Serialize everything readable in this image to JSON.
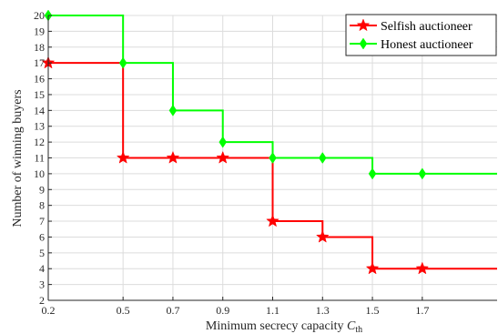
{
  "chart_data": {
    "type": "line",
    "step": "post",
    "title": "",
    "xlabel": "Minimum secrecy capacity",
    "xlabel_symbol": "C",
    "xlabel_subscript": "th",
    "ylabel": "Number of winning buyers",
    "xlim": [
      0.2,
      2.0
    ],
    "ylim": [
      2,
      20
    ],
    "x_ticks": [
      "0.2",
      "0.5",
      "0.7",
      "0.9",
      "1.1",
      "1.3",
      "1.5",
      "1.7"
    ],
    "y_ticks": [
      "2",
      "3",
      "4",
      "5",
      "6",
      "7",
      "8",
      "9",
      "10",
      "11",
      "12",
      "13",
      "14",
      "15",
      "16",
      "17",
      "18",
      "19",
      "20"
    ],
    "grid": true,
    "legend_position": "top-right",
    "series": [
      {
        "name": "Selfish auctioneer",
        "color": "#ff0000",
        "marker": "star",
        "x": [
          0.2,
          0.5,
          0.7,
          0.9,
          1.1,
          1.3,
          1.5,
          1.7,
          2.0
        ],
        "y": [
          17,
          11,
          11,
          11,
          7,
          6,
          4,
          4,
          4
        ]
      },
      {
        "name": "Honest auctioneer",
        "color": "#00ff00",
        "marker": "diamond",
        "x": [
          0.2,
          0.5,
          0.7,
          0.9,
          1.1,
          1.3,
          1.5,
          1.7,
          2.0
        ],
        "y": [
          20,
          17,
          14,
          12,
          11,
          11,
          10,
          10,
          10
        ]
      }
    ]
  }
}
